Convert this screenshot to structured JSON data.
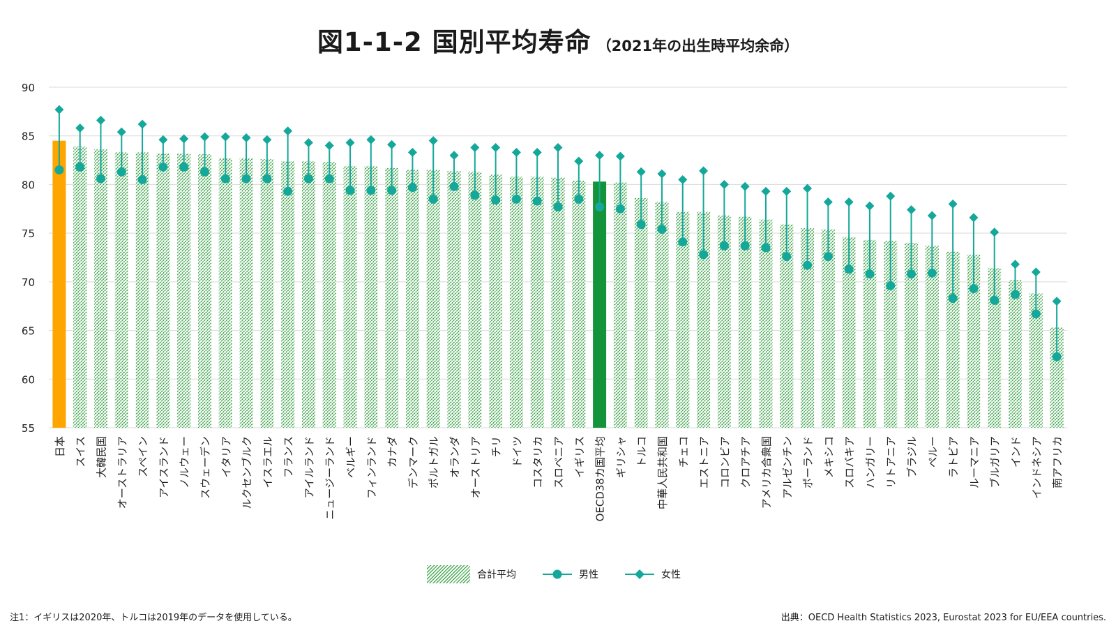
{
  "title": {
    "main": "図1-1-2 国別平均寿命",
    "sub": "（2021年の出生時平均余命）"
  },
  "legend": {
    "total": "合計平均",
    "male": "男性",
    "female": "女性"
  },
  "footer": {
    "note": "注1：イギリスは2020年、トルコは2019年のデータを使用している。",
    "source": "出典：OECD Health Statistics 2023, Eurostat 2023 for EU/EEA countries."
  },
  "colors": {
    "japan_bar": "#ffa500",
    "oecd_bar": "#14943a",
    "hatch": "#2e9c3c",
    "marker": "#14a89a",
    "grid": "#d9d9d9"
  },
  "chart_data": {
    "type": "bar",
    "ylim": [
      55,
      90
    ],
    "yticks": [
      55,
      60,
      65,
      70,
      75,
      80,
      85,
      90
    ],
    "grid": true,
    "legend_position": "bottom",
    "categories": [
      "日本",
      "スイス",
      "大韓民国",
      "オーストラリア",
      "スペイン",
      "アイスランド",
      "ノルウェー",
      "スウェーデン",
      "イタリア",
      "ルクセンブルク",
      "イスラエル",
      "フランス",
      "アイルランド",
      "ニュージーランド",
      "ベルギー",
      "フィンランド",
      "カナダ",
      "デンマーク",
      "ポルトガル",
      "オランダ",
      "オーストリア",
      "チリ",
      "ドイツ",
      "コスタリカ",
      "スロベニア",
      "イギリス",
      "OECD38カ国平均",
      "ギリシャ",
      "トルコ",
      "中華人民共和国",
      "チェコ",
      "エストニア",
      "コロンビア",
      "クロアチア",
      "アメリカ合衆国",
      "アルゼンチン",
      "ポーランド",
      "メキシコ",
      "スロバキア",
      "ハンガリー",
      "リトアニア",
      "ブラジル",
      "ペルー",
      "ラトビア",
      "ルーマニア",
      "ブルガリア",
      "インド",
      "インドネシア",
      "南アフリカ"
    ],
    "series": [
      {
        "name": "合計平均",
        "values": [
          84.5,
          83.9,
          83.6,
          83.3,
          83.3,
          83.2,
          83.2,
          83.1,
          82.7,
          82.7,
          82.6,
          82.4,
          82.4,
          82.3,
          81.9,
          81.9,
          81.7,
          81.5,
          81.5,
          81.4,
          81.3,
          81.0,
          80.8,
          80.8,
          80.7,
          80.4,
          80.3,
          80.2,
          78.6,
          78.2,
          77.2,
          77.2,
          76.8,
          76.7,
          76.4,
          75.9,
          75.5,
          75.4,
          74.6,
          74.3,
          74.2,
          74.0,
          73.7,
          73.1,
          72.8,
          71.4,
          70.2,
          68.8,
          65.3
        ]
      },
      {
        "name": "男性",
        "values": [
          81.5,
          81.8,
          80.6,
          81.3,
          80.5,
          81.8,
          81.8,
          81.3,
          80.6,
          80.6,
          80.6,
          79.3,
          80.6,
          80.6,
          79.4,
          79.4,
          79.4,
          79.7,
          78.5,
          79.8,
          78.9,
          78.4,
          78.5,
          78.3,
          77.7,
          78.5,
          77.7,
          77.5,
          75.9,
          75.4,
          74.1,
          72.8,
          73.7,
          73.7,
          73.5,
          72.6,
          71.7,
          72.6,
          71.3,
          70.8,
          69.6,
          70.8,
          70.9,
          68.3,
          69.3,
          68.1,
          68.7,
          66.7,
          62.3
        ]
      },
      {
        "name": "女性",
        "values": [
          87.7,
          85.8,
          86.6,
          85.4,
          86.2,
          84.6,
          84.7,
          84.9,
          84.9,
          84.8,
          84.6,
          85.5,
          84.3,
          84.0,
          84.3,
          84.6,
          84.1,
          83.3,
          84.5,
          83.0,
          83.8,
          83.8,
          83.3,
          83.3,
          83.8,
          82.4,
          83.0,
          82.9,
          81.3,
          81.1,
          80.5,
          81.4,
          80.0,
          79.8,
          79.3,
          79.3,
          79.6,
          78.2,
          78.2,
          77.8,
          78.8,
          77.4,
          76.8,
          78.0,
          76.6,
          75.1,
          71.8,
          71.0,
          68.0
        ]
      }
    ]
  }
}
